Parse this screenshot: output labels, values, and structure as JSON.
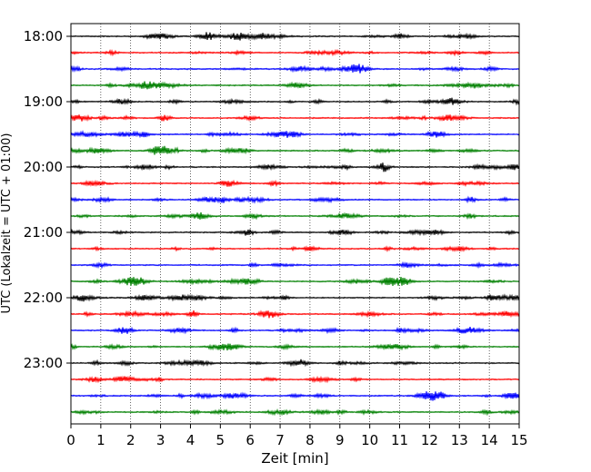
{
  "chart_data": {
    "type": "line",
    "subtype": "helicorder",
    "xlabel": "Zeit  [min]",
    "ylabel": "UTC (Lokalzeit = UTC + 01:00)",
    "xlim": [
      0,
      15
    ],
    "x_ticks": [
      "0",
      "1",
      "2",
      "3",
      "4",
      "5",
      "6",
      "7",
      "8",
      "9",
      "10",
      "11",
      "12",
      "13",
      "14",
      "15"
    ],
    "y_ticks": [
      "18:00",
      "19:00",
      "20:00",
      "21:00",
      "22:00",
      "23:00"
    ],
    "trace_interval_min": 15,
    "trace_count": 24,
    "trace_colors": [
      "#000000",
      "#ff0000",
      "#0000ff",
      "#008000"
    ],
    "trace_start_times": [
      "18:00",
      "18:15",
      "18:30",
      "18:45",
      "19:00",
      "19:15",
      "19:30",
      "19:45",
      "20:00",
      "20:15",
      "20:30",
      "20:45",
      "21:00",
      "21:15",
      "21:30",
      "21:45",
      "22:00",
      "22:15",
      "22:30",
      "22:45",
      "23:00",
      "23:15",
      "23:30",
      "23:45"
    ],
    "vertical_grid": true,
    "grid_style": "dotted"
  }
}
